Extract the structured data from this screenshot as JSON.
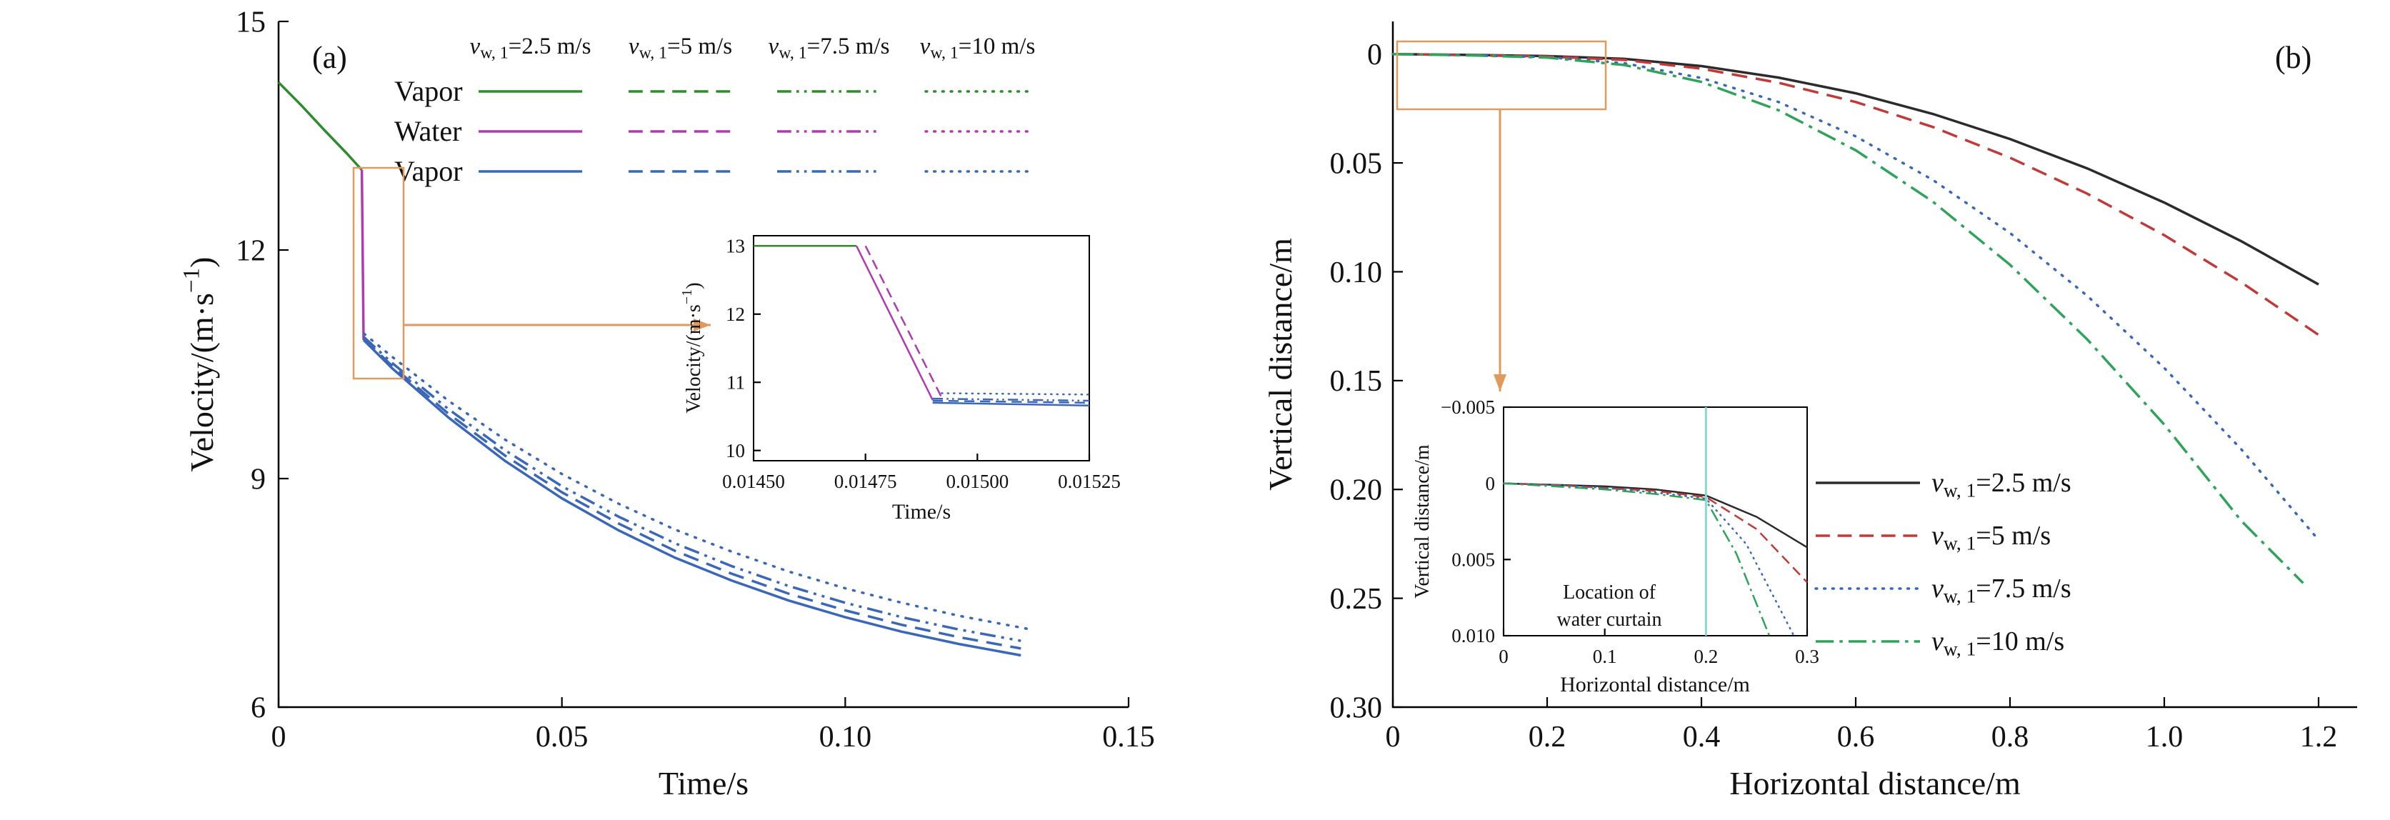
{
  "colors": {
    "vapor_green": "#2e8b2e",
    "water_magenta": "#b13ab1",
    "vapor_blue": "#3a67b8",
    "black": "#2b2b2b",
    "red": "#c03a3a",
    "blue": "#3a67b8",
    "green": "#2fa35c",
    "annotation_orange": "#e09a5c",
    "curtain_teal": "#8fd6d2",
    "axis": "#000000"
  },
  "chart_data": [
    {
      "id": "panel_a",
      "type": "line",
      "corner_label": "(a)",
      "xlabel": "Time/s",
      "ylabel": "Velocity/(m·s^{−1})",
      "xlim": [
        0,
        0.15
      ],
      "ylim_top": 15,
      "ylim_bottom": 6,
      "xticks": {
        "values": [
          0,
          0.05,
          0.1,
          0.15
        ],
        "labels": [
          "0",
          "0.05",
          "0.10",
          "0.15"
        ]
      },
      "yticks": {
        "values": [
          6,
          9,
          12,
          15
        ],
        "labels": [
          "6",
          "9",
          "12",
          "15"
        ]
      },
      "legend": {
        "col_headers": [
          "*v*_{w, 1}=2.5 m/s",
          "*v*_{w, 1}=5 m/s",
          "*v*_{w, 1}=7.5 m/s",
          "*v*_{w, 1}=10 m/s"
        ],
        "rows": [
          {
            "label": "Vapor",
            "color": "vapor_green"
          },
          {
            "label": "Water",
            "color": "water_magenta"
          },
          {
            "label": "Vapor",
            "color": "vapor_blue"
          }
        ],
        "styles": [
          "solid",
          "dashed",
          "dashdotdot",
          "dotted"
        ]
      },
      "series": [
        {
          "id": "vapor-before-curtain",
          "name": "Vapor before water curtain",
          "color": "vapor_green",
          "style": "solid",
          "points": [
            [
              0,
              14.2
            ],
            [
              0.004,
              13.9
            ],
            [
              0.008,
              13.58
            ],
            [
              0.012,
              13.27
            ],
            [
              0.0147,
              13.05
            ]
          ]
        },
        {
          "id": "water-drop",
          "name": "Water at curtain",
          "color": "water_magenta",
          "style": "solid",
          "points": [
            [
              0.0147,
              13.05
            ],
            [
              0.015,
              10.82
            ]
          ]
        },
        {
          "id": "vapor-after-2.5",
          "name": "Vapor after curtain, vw1=2.5 m/s",
          "color": "vapor_blue",
          "style": "solid",
          "points": [
            [
              0.015,
              10.82
            ],
            [
              0.02,
              10.45
            ],
            [
              0.03,
              9.8
            ],
            [
              0.04,
              9.23
            ],
            [
              0.05,
              8.74
            ],
            [
              0.06,
              8.32
            ],
            [
              0.07,
              7.96
            ],
            [
              0.08,
              7.66
            ],
            [
              0.09,
              7.4
            ],
            [
              0.1,
              7.18
            ],
            [
              0.11,
              6.99
            ],
            [
              0.12,
              6.83
            ],
            [
              0.131,
              6.68
            ]
          ]
        },
        {
          "id": "vapor-after-5",
          "name": "Vapor after curtain, vw1=5 m/s",
          "color": "vapor_blue",
          "style": "dashed",
          "points": [
            [
              0.015,
              10.84
            ],
            [
              0.02,
              10.48
            ],
            [
              0.03,
              9.85
            ],
            [
              0.04,
              9.3
            ],
            [
              0.05,
              8.82
            ],
            [
              0.06,
              8.41
            ],
            [
              0.07,
              8.05
            ],
            [
              0.08,
              7.75
            ],
            [
              0.09,
              7.49
            ],
            [
              0.1,
              7.27
            ],
            [
              0.11,
              7.08
            ],
            [
              0.12,
              6.92
            ],
            [
              0.131,
              6.77
            ]
          ]
        },
        {
          "id": "vapor-after-7.5",
          "name": "Vapor after curtain, vw1=7.5 m/s",
          "color": "vapor_blue",
          "style": "dashdotdot",
          "points": [
            [
              0.015,
              10.86
            ],
            [
              0.02,
              10.52
            ],
            [
              0.03,
              9.91
            ],
            [
              0.04,
              9.37
            ],
            [
              0.05,
              8.9
            ],
            [
              0.06,
              8.5
            ],
            [
              0.07,
              8.15
            ],
            [
              0.08,
              7.85
            ],
            [
              0.09,
              7.59
            ],
            [
              0.1,
              7.37
            ],
            [
              0.11,
              7.18
            ],
            [
              0.12,
              7.02
            ],
            [
              0.131,
              6.87
            ]
          ]
        },
        {
          "id": "vapor-after-10",
          "name": "Vapor after curtain, vw1=10 m/s",
          "color": "vapor_blue",
          "style": "dotted",
          "points": [
            [
              0.0151,
              10.9
            ],
            [
              0.02,
              10.6
            ],
            [
              0.03,
              10.02
            ],
            [
              0.04,
              9.51
            ],
            [
              0.05,
              9.06
            ],
            [
              0.06,
              8.67
            ],
            [
              0.07,
              8.33
            ],
            [
              0.08,
              8.04
            ],
            [
              0.09,
              7.78
            ],
            [
              0.1,
              7.56
            ],
            [
              0.11,
              7.37
            ],
            [
              0.12,
              7.2
            ],
            [
              0.132,
              7.03
            ]
          ]
        }
      ],
      "inset": {
        "xlabel": "Time/s",
        "ylabel": "Velocity/(m·s^{−1})",
        "xlim": [
          0.0145,
          0.01525
        ],
        "ylim_top": 13.15,
        "ylim_bottom": 9.85,
        "xticks": {
          "values": [
            0.0145,
            0.01475,
            0.015,
            0.01525
          ],
          "labels": [
            "0.01450",
            "0.01475",
            "0.01500",
            "0.01525"
          ]
        },
        "yticks": {
          "values": [
            10,
            11,
            12,
            13
          ],
          "labels": [
            "10",
            "11",
            "12",
            "13"
          ]
        },
        "series": [
          {
            "id": "inset-vapor-before",
            "color": "vapor_green",
            "style": "solid",
            "points": [
              [
                0.0145,
                13.0
              ],
              [
                0.01473,
                13.0
              ]
            ]
          },
          {
            "id": "inset-water-drop",
            "color": "water_magenta",
            "style": "solid",
            "points": [
              [
                0.01473,
                13.0
              ],
              [
                0.0149,
                10.74
              ]
            ]
          },
          {
            "id": "inset-water-drop-dashed",
            "color": "water_magenta",
            "style": "dashed",
            "points": [
              [
                0.01475,
                13.0
              ],
              [
                0.01492,
                10.78
              ]
            ]
          },
          {
            "id": "inset-vapor-after-2.5",
            "color": "vapor_blue",
            "style": "solid",
            "points": [
              [
                0.0149,
                10.7
              ],
              [
                0.01525,
                10.66
              ]
            ]
          },
          {
            "id": "inset-vapor-after-5",
            "color": "vapor_blue",
            "style": "dashed",
            "points": [
              [
                0.0149,
                10.73
              ],
              [
                0.01525,
                10.7
              ]
            ]
          },
          {
            "id": "inset-vapor-after-7.5",
            "color": "vapor_blue",
            "style": "dashdotdot",
            "points": [
              [
                0.0149,
                10.76
              ],
              [
                0.01525,
                10.73
              ]
            ]
          },
          {
            "id": "inset-vapor-after-10",
            "color": "vapor_blue",
            "style": "dotted",
            "points": [
              [
                0.01492,
                10.84
              ],
              [
                0.01525,
                10.82
              ]
            ]
          }
        ]
      }
    },
    {
      "id": "panel_b",
      "type": "line",
      "corner_label": "(b)",
      "xlabel": "Horizontal distance/m",
      "ylabel": "Vertical distance/m",
      "xlim": [
        0,
        1.25
      ],
      "ylim_top": -0.015,
      "ylim_bottom": 0.3,
      "xticks": {
        "values": [
          0,
          0.2,
          0.4,
          0.6,
          0.8,
          1.0,
          1.2
        ],
        "labels": [
          "0",
          "0.2",
          "0.4",
          "0.6",
          "0.8",
          "1.0",
          "1.2"
        ]
      },
      "yticks": {
        "values": [
          0,
          0.05,
          0.1,
          0.15,
          0.2,
          0.25,
          0.3
        ],
        "labels": [
          "0",
          "0.05",
          "0.10",
          "0.15",
          "0.20",
          "0.25",
          "0.30"
        ]
      },
      "legend": {
        "items": [
          {
            "label": "*v*_{w, 1}=2.5 m/s",
            "color": "black",
            "style": "solid"
          },
          {
            "label": "*v*_{w, 1}=5 m/s",
            "color": "red",
            "style": "dashed"
          },
          {
            "label": "*v*_{w, 1}=7.5 m/s",
            "color": "blue",
            "style": "dotted"
          },
          {
            "label": "*v*_{w, 1}=10 m/s",
            "color": "green",
            "style": "dashdot"
          }
        ]
      },
      "series": [
        {
          "id": "trajectory-2.5",
          "name": "vw1=2.5 m/s",
          "color": "black",
          "style": "solid",
          "points": [
            [
              0,
              0
            ],
            [
              0.1,
              0.0004
            ],
            [
              0.2,
              0.0009
            ],
            [
              0.3,
              0.0022
            ],
            [
              0.4,
              0.0055
            ],
            [
              0.5,
              0.0108
            ],
            [
              0.6,
              0.018
            ],
            [
              0.7,
              0.0275
            ],
            [
              0.8,
              0.039
            ],
            [
              0.9,
              0.0525
            ],
            [
              1.0,
              0.0682
            ],
            [
              1.1,
              0.086
            ],
            [
              1.2,
              0.1058
            ]
          ]
        },
        {
          "id": "trajectory-5",
          "name": "vw1=5 m/s",
          "color": "red",
          "style": "dashed",
          "points": [
            [
              0,
              0
            ],
            [
              0.1,
              0.0005
            ],
            [
              0.2,
              0.0011
            ],
            [
              0.3,
              0.0027
            ],
            [
              0.4,
              0.0067
            ],
            [
              0.5,
              0.0132
            ],
            [
              0.6,
              0.022
            ],
            [
              0.7,
              0.0335
            ],
            [
              0.8,
              0.0476
            ],
            [
              0.9,
              0.0641
            ],
            [
              1.0,
              0.0832
            ],
            [
              1.1,
              0.1049
            ],
            [
              1.2,
              0.129
            ]
          ]
        },
        {
          "id": "trajectory-7.5",
          "name": "vw1=7.5 m/s",
          "color": "blue",
          "style": "dotted",
          "points": [
            [
              0,
              0
            ],
            [
              0.1,
              0.0006
            ],
            [
              0.2,
              0.0014
            ],
            [
              0.3,
              0.0042
            ],
            [
              0.4,
              0.011
            ],
            [
              0.5,
              0.022
            ],
            [
              0.6,
              0.0378
            ],
            [
              0.7,
              0.0578
            ],
            [
              0.8,
              0.0822
            ],
            [
              0.9,
              0.111
            ],
            [
              1.0,
              0.1442
            ],
            [
              1.1,
              0.1816
            ],
            [
              1.2,
              0.2232
            ]
          ]
        },
        {
          "id": "trajectory-10",
          "name": "vw1=10 m/s",
          "color": "green",
          "style": "dashdot",
          "points": [
            [
              0,
              0
            ],
            [
              0.1,
              0.0006
            ],
            [
              0.2,
              0.0016
            ],
            [
              0.3,
              0.005
            ],
            [
              0.4,
              0.0128
            ],
            [
              0.5,
              0.0258
            ],
            [
              0.6,
              0.0442
            ],
            [
              0.7,
              0.0678
            ],
            [
              0.8,
              0.0968
            ],
            [
              0.9,
              0.131
            ],
            [
              1.0,
              0.1702
            ],
            [
              1.1,
              0.2145
            ],
            [
              1.18,
              0.243
            ]
          ]
        }
      ],
      "inset": {
        "xlabel": "Horizontal distance/m",
        "ylabel": "Vertical distance/m",
        "xlim": [
          0,
          0.3
        ],
        "ylim_top": -0.005,
        "ylim_bottom": 0.01,
        "xticks": {
          "values": [
            0,
            0.1,
            0.2,
            0.3
          ],
          "labels": [
            "0",
            "0.1",
            "0.2",
            "0.3"
          ]
        },
        "yticks": {
          "values": [
            -0.005,
            0,
            0.005,
            0.01
          ],
          "labels": [
            "−0.005",
            "0",
            "0.005",
            "0.010"
          ]
        },
        "curtain_x": 0.2,
        "annotation_lines": [
          "Location of",
          "water curtain"
        ],
        "series": [
          {
            "id": "inset-trajectory-2.5",
            "color": "black",
            "style": "solid",
            "points": [
              [
                0,
                0
              ],
              [
                0.05,
                0.0001
              ],
              [
                0.1,
                0.0002
              ],
              [
                0.15,
                0.0004
              ],
              [
                0.2,
                0.0008
              ],
              [
                0.25,
                0.0022
              ],
              [
                0.3,
                0.0042
              ]
            ]
          },
          {
            "id": "inset-trajectory-5",
            "color": "red",
            "style": "dashed",
            "points": [
              [
                0,
                0
              ],
              [
                0.05,
                0.0001
              ],
              [
                0.1,
                0.0003
              ],
              [
                0.15,
                0.0005
              ],
              [
                0.2,
                0.0009
              ],
              [
                0.25,
                0.003
              ],
              [
                0.3,
                0.0065
              ]
            ]
          },
          {
            "id": "inset-trajectory-7.5",
            "color": "blue",
            "style": "dotted",
            "points": [
              [
                0,
                0
              ],
              [
                0.05,
                0.0001
              ],
              [
                0.1,
                0.0003
              ],
              [
                0.15,
                0.0006
              ],
              [
                0.2,
                0.001
              ],
              [
                0.24,
                0.004
              ],
              [
                0.29,
                0.0104
              ]
            ]
          },
          {
            "id": "inset-trajectory-10",
            "color": "green",
            "style": "dashdot",
            "points": [
              [
                0,
                0
              ],
              [
                0.05,
                0.0002
              ],
              [
                0.1,
                0.0004
              ],
              [
                0.15,
                0.0007
              ],
              [
                0.2,
                0.0011
              ],
              [
                0.23,
                0.0046
              ],
              [
                0.265,
                0.0104
              ]
            ]
          }
        ]
      }
    }
  ]
}
